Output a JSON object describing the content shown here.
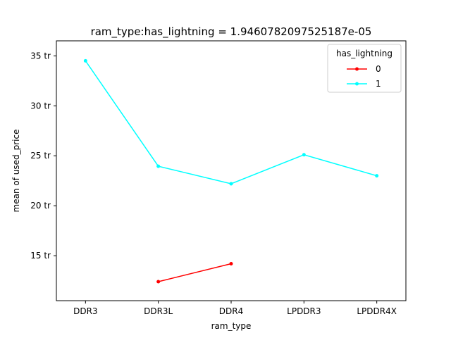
{
  "chart_data": {
    "type": "line",
    "title": "ram_type:has_lightning = 1.9460782097525187e-05",
    "xlabel": "ram_type",
    "ylabel": "mean of used_price",
    "categories": [
      "DDR3",
      "DDR3L",
      "DDR4",
      "LPDDR3",
      "LPDDR4X"
    ],
    "y_ticks": [
      15,
      20,
      25,
      30,
      35
    ],
    "y_tick_labels": [
      "15 tr",
      "20 tr",
      "25 tr",
      "30 tr",
      "35 tr"
    ],
    "ylim": [
      10.5,
      36.5
    ],
    "grid": false,
    "legend": {
      "title": "has_lightning",
      "placement": "top-right"
    },
    "series": [
      {
        "name": "0",
        "color": "#ff0000",
        "values": [
          null,
          12.4,
          14.2,
          null,
          null
        ]
      },
      {
        "name": "1",
        "color": "#00ffff",
        "values": [
          34.5,
          23.95,
          22.2,
          25.1,
          23.0
        ]
      }
    ]
  }
}
